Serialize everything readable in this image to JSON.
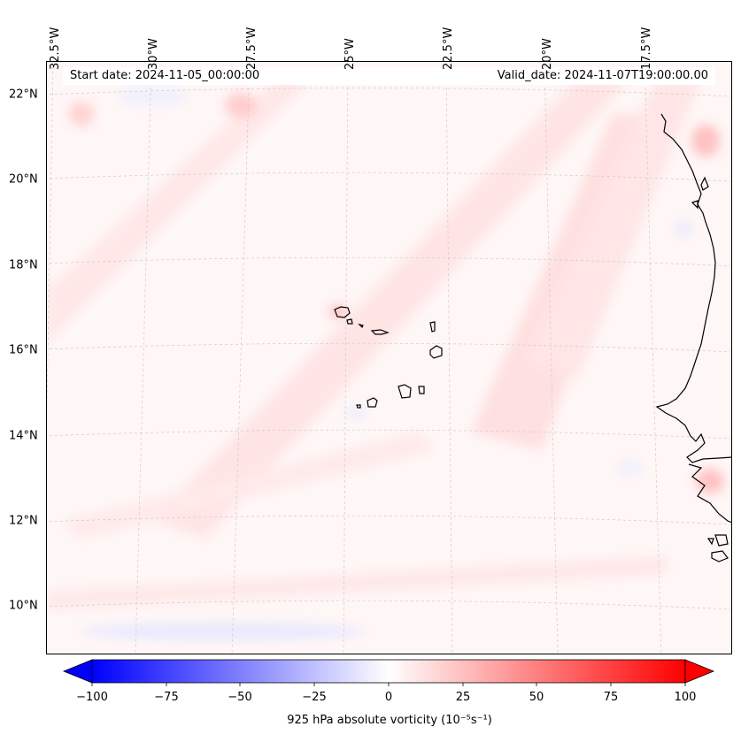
{
  "map": {
    "start_date": "Start date: 2024-11-05_00:00:00",
    "valid_date": "Valid_date: 2024-11-07T19:00:00.00",
    "lat_labels": [
      "22°N",
      "20°N",
      "18°N",
      "16°N",
      "14°N",
      "12°N",
      "10°N"
    ],
    "lon_labels": [
      "32.5°W",
      "30°W",
      "27.5°W",
      "25°W",
      "22.5°W",
      "20°W",
      "17.5°W"
    ],
    "features": [
      "Cape Verde islands",
      "West African coastline"
    ]
  },
  "colorbar": {
    "label": "925 hPa absolute vorticity (10⁻⁵s⁻¹)",
    "ticks": [
      "−100",
      "−75",
      "−50",
      "−25",
      "0",
      "25",
      "50",
      "75",
      "100"
    ],
    "range": [
      -100,
      100
    ],
    "colors": {
      "min": "#0000ff",
      "mid": "#ffffff",
      "max": "#ff0000"
    }
  }
}
